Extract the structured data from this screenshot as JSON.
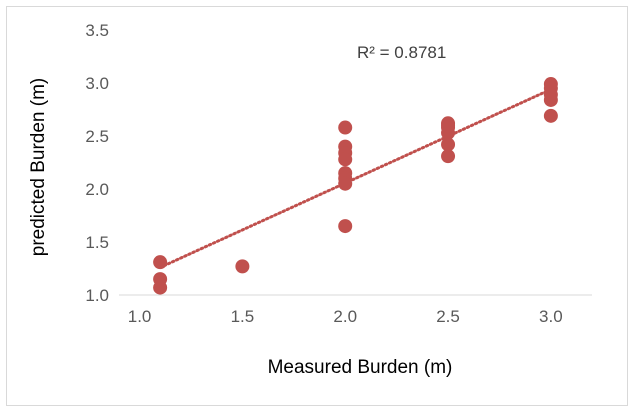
{
  "chart_data": {
    "type": "scatter",
    "xlabel": "Measured Burden (m)",
    "ylabel": "predicted Burden (m)",
    "xlim": [
      0.9,
      3.2
    ],
    "ylim": [
      1.0,
      3.5
    ],
    "x_ticks": [
      "1.0",
      "1.5",
      "2.0",
      "2.5",
      "3.0"
    ],
    "y_ticks": [
      "1.0",
      "1.5",
      "2.0",
      "2.5",
      "3.0",
      "3.5"
    ],
    "grid": false,
    "legend": "none",
    "annotation": "R² = 0.8781",
    "trendline": {
      "type": "linear",
      "x": [
        1.1,
        3.0
      ],
      "y": [
        1.26,
        2.94
      ],
      "style": "dotted"
    },
    "colors": {
      "points": "#c0504d",
      "trendline": "#c0504d",
      "axis": "#d9d9d9"
    },
    "series": [
      {
        "x": [
          1.1,
          1.1,
          1.1,
          1.5,
          2.0,
          2.0,
          2.0,
          2.0,
          2.0,
          2.0,
          2.0,
          2.0,
          2.5,
          2.5,
          2.5,
          2.5,
          2.5,
          2.5,
          3.0,
          3.0,
          3.0,
          3.0,
          3.0
        ],
        "y": [
          1.31,
          1.15,
          1.07,
          1.27,
          2.58,
          2.4,
          2.34,
          2.28,
          2.15,
          2.1,
          2.05,
          1.65,
          2.62,
          2.58,
          2.53,
          2.42,
          2.31,
          2.6,
          2.99,
          2.95,
          2.89,
          2.84,
          2.69
        ]
      }
    ]
  }
}
